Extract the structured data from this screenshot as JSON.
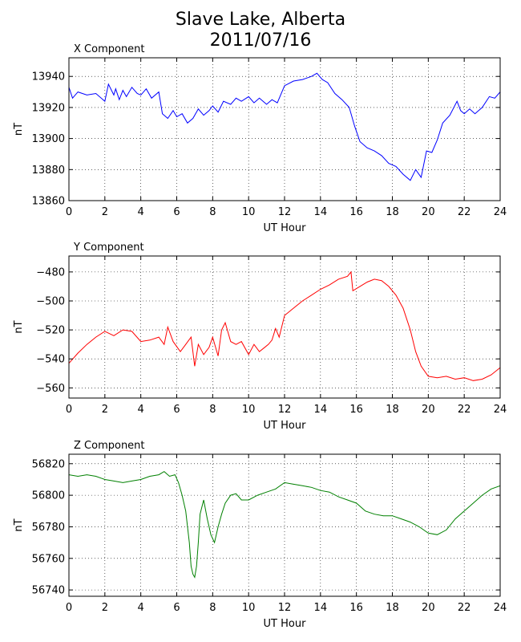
{
  "figure": {
    "title_line1": "Slave Lake, Alberta",
    "title_line2": "2011/07/16"
  },
  "chart_data": [
    {
      "type": "line",
      "title": "X Component",
      "xlabel": "UT Hour",
      "ylabel": "nT",
      "xlim": [
        0,
        24
      ],
      "ylim": [
        13860,
        13952
      ],
      "xticks": [
        0,
        2,
        4,
        6,
        8,
        10,
        12,
        14,
        16,
        18,
        20,
        22,
        24
      ],
      "yticks": [
        13860,
        13880,
        13900,
        13920,
        13940
      ],
      "grid": true,
      "color": "#0000ff",
      "series": [
        {
          "x": [
            0,
            0.2,
            0.5,
            1,
            1.5,
            2,
            2.2,
            2.5,
            2.6,
            2.8,
            3,
            3.2,
            3.5,
            3.8,
            4,
            4.3,
            4.6,
            5,
            5.2,
            5.5,
            5.8,
            6,
            6.3,
            6.6,
            6.9,
            7.2,
            7.5,
            7.8,
            8,
            8.3,
            8.6,
            9,
            9.3,
            9.6,
            10,
            10.3,
            10.6,
            11,
            11.3,
            11.6,
            12,
            12.5,
            13,
            13.5,
            13.8,
            14.1,
            14.4,
            14.8,
            15.2,
            15.6,
            15.9,
            16.2,
            16.6,
            17,
            17.4,
            17.8,
            18.2,
            18.6,
            19,
            19.3,
            19.6,
            19.9,
            20.2,
            20.5,
            20.8,
            21.2,
            21.6,
            21.8,
            22,
            22.3,
            22.6,
            23,
            23.4,
            23.7,
            24
          ],
          "values": [
            13933,
            13926,
            13930,
            13928,
            13929,
            13924,
            13935,
            13928,
            13932,
            13925,
            13931,
            13927,
            13933,
            13929,
            13928,
            13932,
            13926,
            13930,
            13916,
            13913,
            13918,
            13914,
            13916,
            13910,
            13913,
            13919,
            13915,
            13918,
            13921,
            13917,
            13924,
            13922,
            13926,
            13924,
            13927,
            13923,
            13926,
            13922,
            13925,
            13923,
            13934,
            13937,
            13938,
            13940,
            13942,
            13938,
            13936,
            13929,
            13925,
            13920,
            13908,
            13898,
            13894,
            13892,
            13889,
            13884,
            13882,
            13877,
            13873,
            13880,
            13875,
            13892,
            13891,
            13899,
            13910,
            13915,
            13924,
            13918,
            13916,
            13919,
            13916,
            13920,
            13927,
            13926,
            13930
          ]
        }
      ]
    },
    {
      "type": "line",
      "title": "Y Component",
      "xlabel": "UT Hour",
      "ylabel": "nT",
      "xlim": [
        0,
        24
      ],
      "ylim": [
        -567,
        -469
      ],
      "xticks": [
        0,
        2,
        4,
        6,
        8,
        10,
        12,
        14,
        16,
        18,
        20,
        22,
        24
      ],
      "yticks": [
        -480,
        -500,
        -520,
        -540,
        -560
      ],
      "grid": true,
      "color": "#ff0000",
      "series": [
        {
          "x": [
            0,
            0.5,
            1,
            1.5,
            2,
            2.5,
            3,
            3.5,
            4,
            4.5,
            5,
            5.3,
            5.5,
            5.8,
            6.2,
            6.5,
            6.8,
            7,
            7.2,
            7.5,
            7.8,
            8,
            8.3,
            8.5,
            8.7,
            9,
            9.3,
            9.6,
            10,
            10.3,
            10.6,
            10.9,
            11.1,
            11.3,
            11.5,
            11.7,
            12,
            12.5,
            13,
            13.5,
            14,
            14.5,
            15,
            15.5,
            15.7,
            15.8,
            16.2,
            16.6,
            17,
            17.4,
            17.8,
            18.2,
            18.6,
            19,
            19.3,
            19.6,
            20,
            20.5,
            21,
            21.5,
            22,
            22.5,
            23,
            23.5,
            24
          ],
          "values": [
            -543,
            -536,
            -530,
            -525,
            -521,
            -524,
            -520,
            -521,
            -528,
            -527,
            -525,
            -530,
            -518,
            -528,
            -535,
            -530,
            -525,
            -545,
            -530,
            -537,
            -532,
            -525,
            -538,
            -520,
            -515,
            -528,
            -530,
            -528,
            -537,
            -530,
            -535,
            -532,
            -530,
            -527,
            -519,
            -525,
            -510,
            -505,
            -500,
            -496,
            -492,
            -489,
            -485,
            -483,
            -480,
            -493,
            -490,
            -487,
            -485,
            -486,
            -490,
            -496,
            -505,
            -520,
            -535,
            -545,
            -552,
            -553,
            -552,
            -554,
            -553,
            -555,
            -554,
            -551,
            -546
          ]
        }
      ]
    },
    {
      "type": "line",
      "title": "Z Component",
      "xlabel": "UT Hour",
      "ylabel": "nT",
      "xlim": [
        0,
        24
      ],
      "ylim": [
        56736,
        56826
      ],
      "xticks": [
        0,
        2,
        4,
        6,
        8,
        10,
        12,
        14,
        16,
        18,
        20,
        22,
        24
      ],
      "yticks": [
        56740,
        56760,
        56780,
        56800,
        56820
      ],
      "grid": true,
      "color": "#008000",
      "series": [
        {
          "x": [
            0,
            0.5,
            1,
            1.5,
            2,
            2.5,
            3,
            3.5,
            4,
            4.5,
            5,
            5.3,
            5.6,
            5.9,
            6.1,
            6.3,
            6.5,
            6.7,
            6.8,
            6.9,
            7.0,
            7.1,
            7.2,
            7.3,
            7.5,
            7.7,
            7.9,
            8.1,
            8.3,
            8.5,
            8.7,
            9,
            9.3,
            9.6,
            10,
            10.5,
            11,
            11.5,
            12,
            12.5,
            13,
            13.5,
            14,
            14.5,
            15,
            15.5,
            16,
            16.5,
            17,
            17.5,
            18,
            18.5,
            19,
            19.5,
            20,
            20.5,
            21,
            21.5,
            22,
            22.5,
            23,
            23.5,
            24
          ],
          "values": [
            56813,
            56812,
            56813,
            56812,
            56810,
            56809,
            56808,
            56809,
            56810,
            56812,
            56813,
            56815,
            56812,
            56813,
            56808,
            56800,
            56790,
            56770,
            56755,
            56750,
            56748,
            56755,
            56770,
            56788,
            56797,
            56785,
            56775,
            56770,
            56780,
            56788,
            56795,
            56800,
            56801,
            56797,
            56797,
            56800,
            56802,
            56804,
            56808,
            56807,
            56806,
            56805,
            56803,
            56802,
            56799,
            56797,
            56795,
            56790,
            56788,
            56787,
            56787,
            56785,
            56783,
            56780,
            56776,
            56775,
            56778,
            56785,
            56790,
            56795,
            56800,
            56804,
            56806
          ]
        }
      ]
    }
  ]
}
